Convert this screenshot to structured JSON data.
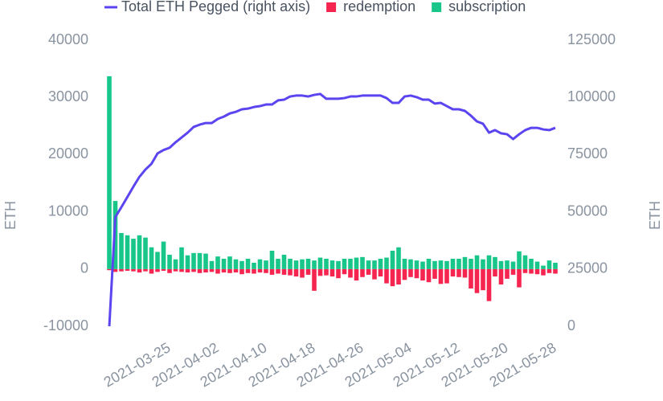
{
  "chart_data": {
    "type": "bar",
    "x": [
      "2021-03-15",
      "2021-03-16",
      "2021-03-17",
      "2021-03-18",
      "2021-03-19",
      "2021-03-20",
      "2021-03-21",
      "2021-03-22",
      "2021-03-23",
      "2021-03-24",
      "2021-03-25",
      "2021-03-26",
      "2021-03-27",
      "2021-03-28",
      "2021-03-29",
      "2021-03-30",
      "2021-03-31",
      "2021-04-01",
      "2021-04-02",
      "2021-04-03",
      "2021-04-04",
      "2021-04-05",
      "2021-04-06",
      "2021-04-07",
      "2021-04-08",
      "2021-04-09",
      "2021-04-10",
      "2021-04-11",
      "2021-04-12",
      "2021-04-13",
      "2021-04-14",
      "2021-04-15",
      "2021-04-16",
      "2021-04-17",
      "2021-04-18",
      "2021-04-19",
      "2021-04-20",
      "2021-04-21",
      "2021-04-22",
      "2021-04-23",
      "2021-04-24",
      "2021-04-25",
      "2021-04-26",
      "2021-04-27",
      "2021-04-28",
      "2021-04-29",
      "2021-04-30",
      "2021-05-01",
      "2021-05-02",
      "2021-05-03",
      "2021-05-04",
      "2021-05-05",
      "2021-05-06",
      "2021-05-07",
      "2021-05-08",
      "2021-05-09",
      "2021-05-10",
      "2021-05-11",
      "2021-05-12",
      "2021-05-13",
      "2021-05-14",
      "2021-05-15",
      "2021-05-16",
      "2021-05-17",
      "2021-05-18",
      "2021-05-19",
      "2021-05-20",
      "2021-05-21",
      "2021-05-22",
      "2021-05-23",
      "2021-05-24",
      "2021-05-25",
      "2021-05-26",
      "2021-05-27",
      "2021-05-28"
    ],
    "series": [
      {
        "name": "Total ETH Pegged (right axis)",
        "type": "line",
        "axis": "y2",
        "color": "#5b45f0",
        "values": [
          0,
          47700,
          52000,
          56500,
          61000,
          65300,
          68500,
          71000,
          75500,
          77000,
          78000,
          80400,
          82500,
          84600,
          87100,
          88100,
          88800,
          88800,
          90600,
          91600,
          93000,
          93700,
          94800,
          95100,
          95800,
          96200,
          96900,
          96900,
          98700,
          99000,
          100400,
          100800,
          100800,
          100400,
          101100,
          101500,
          99400,
          99400,
          99400,
          99700,
          100400,
          100400,
          100800,
          100800,
          100800,
          100800,
          99700,
          97600,
          97600,
          100400,
          100800,
          100100,
          99000,
          99000,
          97300,
          97600,
          96200,
          94800,
          94800,
          94100,
          92000,
          89500,
          88500,
          84600,
          85700,
          84300,
          83900,
          81800,
          83900,
          85700,
          86700,
          86700,
          86000,
          85700,
          86700
        ]
      },
      {
        "name": "redemption",
        "type": "bar",
        "color": "#f5254f",
        "values": [
          -200,
          -500,
          -400,
          -300,
          -400,
          -600,
          -400,
          -800,
          -500,
          -300,
          -700,
          -400,
          -500,
          -600,
          -500,
          -700,
          -600,
          -500,
          -800,
          -600,
          -700,
          -600,
          -900,
          -700,
          -800,
          -600,
          -700,
          -1000,
          -800,
          -1000,
          -1100,
          -1300,
          -1500,
          -1000,
          -3800,
          -1200,
          -1100,
          -1300,
          -1600,
          -900,
          -1500,
          -2000,
          -1400,
          -1000,
          -1800,
          -1300,
          -2500,
          -3000,
          -2700,
          -1900,
          -1400,
          -1600,
          -2000,
          -2300,
          -1700,
          -2600,
          -2500,
          -1300,
          -1400,
          -1500,
          -3400,
          -4200,
          -3700,
          -5600,
          -1300,
          -2700,
          -1700,
          -1000,
          -3200,
          -700,
          -800,
          -900,
          -1100,
          -700,
          -800
        ]
      },
      {
        "name": "subscription",
        "type": "bar",
        "color": "#19c68a",
        "values": [
          33700,
          11900,
          6300,
          5900,
          5300,
          5900,
          5500,
          3800,
          3000,
          4800,
          2500,
          1700,
          3800,
          2400,
          2800,
          2800,
          2700,
          1400,
          2200,
          1800,
          2200,
          1700,
          1400,
          1800,
          1100,
          1700,
          1500,
          3200,
          1800,
          2500,
          1800,
          1500,
          1700,
          1800,
          1500,
          2000,
          1800,
          1500,
          1400,
          1800,
          1800,
          2000,
          2100,
          1500,
          1500,
          1800,
          2000,
          3200,
          3800,
          1800,
          1700,
          1500,
          1300,
          1800,
          1400,
          1500,
          1400,
          1800,
          1800,
          2100,
          1800,
          2400,
          1700,
          2400,
          2100,
          1400,
          1500,
          1300,
          3100,
          2400,
          1800,
          1300,
          600,
          1500,
          1100
        ]
      }
    ],
    "ylabel": "ETH",
    "y2label": "ETH",
    "ylim": [
      -10000,
      40000
    ],
    "yticks": [
      -10000,
      0,
      10000,
      20000,
      30000,
      40000
    ],
    "y2lim": [
      0,
      125000
    ],
    "y2ticks": [
      0,
      25000,
      50000,
      75000,
      100000,
      125000
    ],
    "xticks": [
      "2021-03-25",
      "2021-04-02",
      "2021-04-10",
      "2021-04-18",
      "2021-04-26",
      "2021-05-04",
      "2021-05-12",
      "2021-05-20",
      "2021-05-28"
    ],
    "grid": false,
    "legend": "top"
  }
}
